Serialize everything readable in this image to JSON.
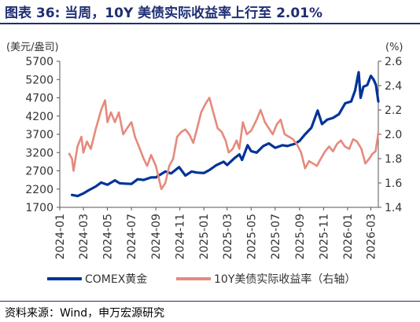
{
  "figure": {
    "title": "图表 36: 当周，10Y 美债实际收益率上行至 2.01%",
    "source": "资料来源：Wind，申万宏源研究",
    "colors": {
      "title": "#1f2f73",
      "gold": "#003399",
      "yield": "#e58a7c",
      "rule": "#1f2f73",
      "text": "#333333"
    }
  },
  "chart_data": {
    "type": "line",
    "left_axis": {
      "label": "(美元/盎司)",
      "ticks": [
        1700,
        2200,
        2700,
        3200,
        3700,
        4200,
        4700,
        5200,
        5700
      ],
      "range": [
        1700,
        5700
      ]
    },
    "right_axis": {
      "label": "(%)",
      "ticks": [
        "1.4",
        "1.6",
        "1.8",
        "2.0",
        "2.2",
        "2.4",
        "2.6"
      ],
      "range": [
        1.4,
        2.6
      ]
    },
    "x_axis": {
      "ticks": [
        "2024-01",
        "2024-03",
        "2024-05",
        "2024-07",
        "2024-09",
        "2024-11",
        "2025-01",
        "2025-03",
        "2025-05",
        "2025-07",
        "2025-09",
        "2025-11",
        "2026-01",
        "2026-03"
      ],
      "range": [
        "2024-01-01",
        "2026-03-20"
      ]
    },
    "grid": false,
    "legend_position": "bottom",
    "series": [
      {
        "name": "COMEX黄金",
        "axis": "left",
        "color": "#003399",
        "points": [
          [
            "2024-02-01",
            2040
          ],
          [
            "2024-02-15",
            2010
          ],
          [
            "2024-03-01",
            2080
          ],
          [
            "2024-03-15",
            2170
          ],
          [
            "2024-04-01",
            2270
          ],
          [
            "2024-04-15",
            2380
          ],
          [
            "2024-05-01",
            2320
          ],
          [
            "2024-05-20",
            2440
          ],
          [
            "2024-06-01",
            2360
          ],
          [
            "2024-06-15",
            2350
          ],
          [
            "2024-07-01",
            2340
          ],
          [
            "2024-07-17",
            2470
          ],
          [
            "2024-08-01",
            2450
          ],
          [
            "2024-08-20",
            2520
          ],
          [
            "2024-09-01",
            2520
          ],
          [
            "2024-09-25",
            2680
          ],
          [
            "2024-10-10",
            2630
          ],
          [
            "2024-10-30",
            2800
          ],
          [
            "2024-11-15",
            2570
          ],
          [
            "2024-12-01",
            2680
          ],
          [
            "2024-12-15",
            2650
          ],
          [
            "2025-01-01",
            2640
          ],
          [
            "2025-01-15",
            2720
          ],
          [
            "2025-02-01",
            2850
          ],
          [
            "2025-02-20",
            2950
          ],
          [
            "2025-03-01",
            2860
          ],
          [
            "2025-03-20",
            3050
          ],
          [
            "2025-04-01",
            3150
          ],
          [
            "2025-04-08",
            3000
          ],
          [
            "2025-04-22",
            3400
          ],
          [
            "2025-05-01",
            3240
          ],
          [
            "2025-05-15",
            3200
          ],
          [
            "2025-06-01",
            3380
          ],
          [
            "2025-06-15",
            3450
          ],
          [
            "2025-07-01",
            3330
          ],
          [
            "2025-07-20",
            3400
          ],
          [
            "2025-08-01",
            3380
          ],
          [
            "2025-08-20",
            3440
          ],
          [
            "2025-09-01",
            3520
          ],
          [
            "2025-09-15",
            3700
          ],
          [
            "2025-10-01",
            3880
          ],
          [
            "2025-10-17",
            4350
          ],
          [
            "2025-10-28",
            3980
          ],
          [
            "2025-11-10",
            4100
          ],
          [
            "2025-11-25",
            4150
          ],
          [
            "2025-12-10",
            4250
          ],
          [
            "2025-12-26",
            4550
          ],
          [
            "2026-01-10",
            4600
          ],
          [
            "2026-01-20",
            4900
          ],
          [
            "2026-01-29",
            5400
          ],
          [
            "2026-02-03",
            4700
          ],
          [
            "2026-02-10",
            5000
          ],
          [
            "2026-02-20",
            5050
          ],
          [
            "2026-03-01",
            5300
          ],
          [
            "2026-03-08",
            5200
          ],
          [
            "2026-03-14",
            5050
          ],
          [
            "2026-03-20",
            4600
          ]
        ]
      },
      {
        "name": "10Y美债实际收益率（右轴）",
        "axis": "right",
        "color": "#e58a7c",
        "points": [
          [
            "2024-01-25",
            1.84
          ],
          [
            "2024-02-01",
            1.8
          ],
          [
            "2024-02-05",
            1.7
          ],
          [
            "2024-02-15",
            1.9
          ],
          [
            "2024-02-25",
            1.98
          ],
          [
            "2024-03-01",
            1.85
          ],
          [
            "2024-03-10",
            1.94
          ],
          [
            "2024-03-20",
            1.88
          ],
          [
            "2024-04-01",
            2.04
          ],
          [
            "2024-04-15",
            2.2
          ],
          [
            "2024-04-25",
            2.28
          ],
          [
            "2024-05-01",
            2.1
          ],
          [
            "2024-05-10",
            2.18
          ],
          [
            "2024-05-20",
            2.1
          ],
          [
            "2024-05-30",
            2.18
          ],
          [
            "2024-06-10",
            2.0
          ],
          [
            "2024-06-20",
            2.05
          ],
          [
            "2024-07-01",
            2.1
          ],
          [
            "2024-07-10",
            1.98
          ],
          [
            "2024-07-20",
            1.9
          ],
          [
            "2024-08-01",
            1.8
          ],
          [
            "2024-08-10",
            1.74
          ],
          [
            "2024-08-20",
            1.83
          ],
          [
            "2024-09-01",
            1.74
          ],
          [
            "2024-09-15",
            1.55
          ],
          [
            "2024-09-25",
            1.6
          ],
          [
            "2024-10-05",
            1.74
          ],
          [
            "2024-10-15",
            1.8
          ],
          [
            "2024-10-25",
            1.98
          ],
          [
            "2024-11-05",
            2.02
          ],
          [
            "2024-11-15",
            2.04
          ],
          [
            "2024-11-25",
            2.0
          ],
          [
            "2024-12-05",
            1.93
          ],
          [
            "2024-12-15",
            2.05
          ],
          [
            "2024-12-25",
            2.18
          ],
          [
            "2025-01-05",
            2.25
          ],
          [
            "2025-01-15",
            2.3
          ],
          [
            "2025-01-25",
            2.18
          ],
          [
            "2025-02-05",
            2.05
          ],
          [
            "2025-02-15",
            2.02
          ],
          [
            "2025-02-25",
            1.95
          ],
          [
            "2025-03-05",
            1.85
          ],
          [
            "2025-03-15",
            1.88
          ],
          [
            "2025-03-25",
            1.95
          ],
          [
            "2025-04-01",
            1.88
          ],
          [
            "2025-04-10",
            2.1
          ],
          [
            "2025-04-20",
            2.0
          ],
          [
            "2025-05-01",
            2.03
          ],
          [
            "2025-05-15",
            2.12
          ],
          [
            "2025-05-25",
            2.2
          ],
          [
            "2025-06-05",
            2.1
          ],
          [
            "2025-06-15",
            2.05
          ],
          [
            "2025-06-25",
            2.0
          ],
          [
            "2025-07-05",
            2.08
          ],
          [
            "2025-07-15",
            2.12
          ],
          [
            "2025-07-25",
            2.0
          ],
          [
            "2025-08-05",
            1.98
          ],
          [
            "2025-08-15",
            1.96
          ],
          [
            "2025-08-25",
            1.92
          ],
          [
            "2025-09-05",
            1.85
          ],
          [
            "2025-09-15",
            1.72
          ],
          [
            "2025-09-25",
            1.78
          ],
          [
            "2025-10-05",
            1.76
          ],
          [
            "2025-10-15",
            1.74
          ],
          [
            "2025-10-25",
            1.8
          ],
          [
            "2025-11-05",
            1.86
          ],
          [
            "2025-11-15",
            1.9
          ],
          [
            "2025-11-25",
            1.86
          ],
          [
            "2025-12-05",
            1.92
          ],
          [
            "2025-12-15",
            1.95
          ],
          [
            "2025-12-25",
            1.9
          ],
          [
            "2026-01-05",
            1.88
          ],
          [
            "2026-01-15",
            1.96
          ],
          [
            "2026-01-25",
            1.94
          ],
          [
            "2026-02-05",
            1.88
          ],
          [
            "2026-02-15",
            1.76
          ],
          [
            "2026-02-25",
            1.8
          ],
          [
            "2026-03-05",
            1.84
          ],
          [
            "2026-03-13",
            1.86
          ],
          [
            "2026-03-20",
            2.01
          ]
        ]
      }
    ]
  }
}
